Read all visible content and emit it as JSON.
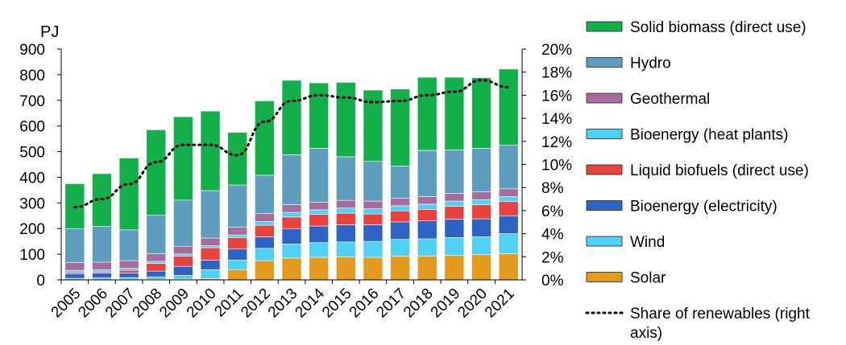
{
  "chart_data": {
    "type": "bar",
    "stacked": true,
    "y_unit": "PJ",
    "ylim": [
      0,
      900
    ],
    "yticks": [
      "0",
      "100",
      "200",
      "300",
      "400",
      "500",
      "600",
      "700",
      "800",
      "900"
    ],
    "y2lim": [
      0,
      0.2
    ],
    "y2ticks": [
      "0%",
      "2%",
      "4%",
      "6%",
      "8%",
      "10%",
      "12%",
      "14%",
      "16%",
      "18%",
      "20%"
    ],
    "categories": [
      "2005",
      "2006",
      "2007",
      "2008",
      "2009",
      "2010",
      "2011",
      "2012",
      "2013",
      "2014",
      "2015",
      "2016",
      "2017",
      "2018",
      "2019",
      "2020",
      "2021"
    ],
    "series": [
      {
        "name": "Solar",
        "color": "#E39A1E",
        "values": [
          1,
          1,
          1,
          2,
          3,
          5,
          40,
          75,
          85,
          88,
          90,
          88,
          93,
          93,
          95,
          98,
          102
        ]
      },
      {
        "name": "Wind",
        "color": "#4FD1F5",
        "values": [
          5,
          7,
          8,
          10,
          15,
          35,
          37,
          48,
          55,
          57,
          58,
          62,
          65,
          67,
          70,
          70,
          78
        ]
      },
      {
        "name": "Bioenergy (electricity)",
        "color": "#2E63C4",
        "values": [
          18,
          18,
          18,
          22,
          35,
          37,
          43,
          45,
          60,
          65,
          67,
          65,
          68,
          70,
          72,
          70,
          70
        ]
      },
      {
        "name": "Liquid biofuels (direct use)",
        "color": "#E8423F",
        "values": [
          5,
          5,
          10,
          30,
          40,
          48,
          45,
          45,
          45,
          45,
          45,
          42,
          43,
          45,
          50,
          55,
          55
        ]
      },
      {
        "name": "Bioenergy (heat plants)",
        "color": "#4FD1F5",
        "values": [
          8,
          8,
          8,
          8,
          8,
          8,
          10,
          15,
          18,
          18,
          20,
          20,
          20,
          20,
          20,
          20,
          20
        ]
      },
      {
        "name": "Geothermal",
        "color": "#A66C9E",
        "values": [
          30,
          30,
          30,
          30,
          30,
          30,
          30,
          30,
          30,
          30,
          30,
          30,
          30,
          30,
          30,
          30,
          30
        ]
      },
      {
        "name": "Hydro",
        "color": "#5F9DBF",
        "values": [
          133,
          140,
          120,
          150,
          180,
          185,
          165,
          150,
          195,
          210,
          170,
          155,
          125,
          180,
          170,
          170,
          170
        ]
      },
      {
        "name": "Solid biomass (direct use)",
        "color": "#12AF4A",
        "values": [
          175,
          205,
          280,
          333,
          325,
          310,
          205,
          290,
          290,
          255,
          290,
          278,
          300,
          285,
          283,
          275,
          297
        ]
      }
    ],
    "line": {
      "name": "Share of renewables (right axis)",
      "axis": "right",
      "color": "#000000",
      "values": [
        0.063,
        0.07,
        0.083,
        0.102,
        0.117,
        0.117,
        0.108,
        0.137,
        0.155,
        0.16,
        0.158,
        0.154,
        0.155,
        0.16,
        0.163,
        0.173,
        0.167
      ]
    },
    "legend": {
      "placement": "right"
    },
    "grid": false
  }
}
